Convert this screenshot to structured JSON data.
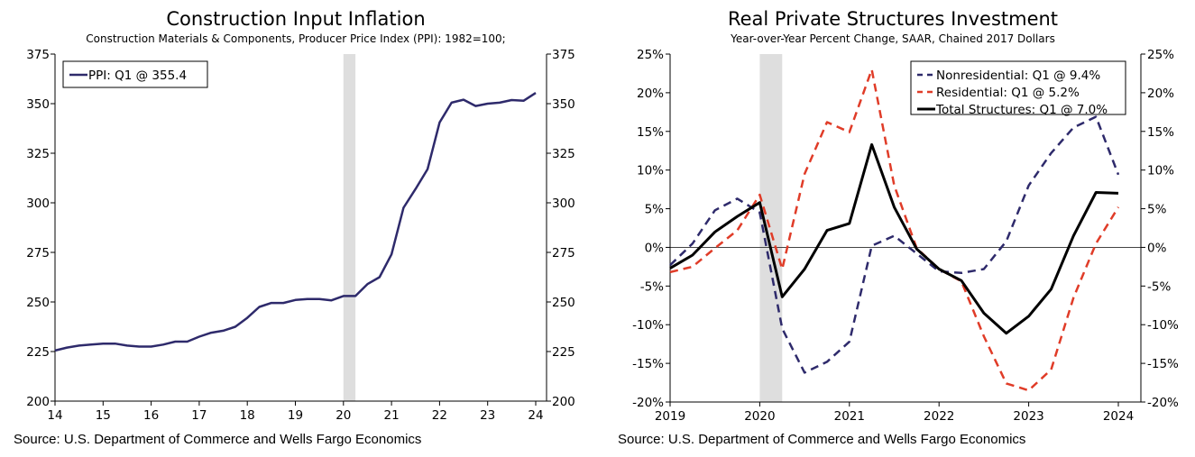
{
  "chart_data": [
    {
      "type": "line",
      "title": "Construction Input Inflation",
      "subtitle": "Construction Materials & Components, Producer Price Index (PPI): 1982=100;",
      "source": "Source: U.S. Department of Commerce and Wells Fargo Economics",
      "x_tick_labels": [
        "14",
        "15",
        "16",
        "17",
        "18",
        "19",
        "20",
        "21",
        "22",
        "23",
        "24"
      ],
      "y_tick_labels": [
        "200",
        "225",
        "250",
        "275",
        "300",
        "325",
        "350",
        "375"
      ],
      "ylim": [
        200,
        375
      ],
      "xlim": [
        2014,
        2024.1
      ],
      "x_start": 2014,
      "x_step": 0.25,
      "recession": [
        2020.0,
        2020.25
      ],
      "legend_placement": "top-left",
      "series": [
        {
          "name": "PPI: Q1 @ 355.4",
          "color": "#2e2a6b",
          "style": "solid",
          "values": [
            225.5,
            227,
            228,
            228.5,
            229,
            229,
            228,
            227.5,
            227.5,
            228.5,
            230,
            230,
            232.5,
            234.5,
            235.5,
            237.5,
            242,
            247.5,
            249.5,
            249.5,
            251,
            251.5,
            251.5,
            250.8,
            253,
            253,
            259,
            262.5,
            274,
            297.5,
            307,
            317,
            340.5,
            350.5,
            352,
            348.8,
            350,
            350.5,
            351.8,
            351.5,
            355.4
          ]
        }
      ]
    },
    {
      "type": "line",
      "title": "Real Private Structures Investment",
      "subtitle": "Year-over-Year Percent Change, SAAR, Chained 2017 Dollars",
      "source": "Source: U.S. Department of Commerce and Wells Fargo Economics",
      "x_tick_labels": [
        "2019",
        "2020",
        "2021",
        "2022",
        "2023",
        "2024"
      ],
      "y_tick_labels": [
        "-20%",
        "-15%",
        "-10%",
        "-5%",
        "0%",
        "5%",
        "10%",
        "15%",
        "20%",
        "25%"
      ],
      "ylim": [
        -20,
        25
      ],
      "xlim": [
        2019,
        2024.1
      ],
      "x_start": 2019,
      "x_step": 0.25,
      "recession": [
        2020.0,
        2020.25
      ],
      "legend_placement": "top-right",
      "series": [
        {
          "name": "Nonresidential: Q1 @ 9.4%",
          "color": "#2e2a6b",
          "style": "dashed",
          "values": [
            -2.3,
            0.5,
            4.8,
            6.3,
            4.5,
            -10.5,
            -16.2,
            -14.8,
            -12.2,
            0.2,
            1.5,
            -0.8,
            -3.1,
            -3.3,
            -2.8,
            0.8,
            8,
            12.2,
            15.5,
            16.9,
            9.4
          ]
        },
        {
          "name": "Residential: Q1 @ 5.2%",
          "color": "#e03c28",
          "style": "dashed",
          "values": [
            -3.2,
            -2.5,
            -0.1,
            2.2,
            6.8,
            -2.8,
            9.5,
            16.2,
            14.9,
            23,
            8,
            -0.1,
            -2.8,
            -4.4,
            -11.5,
            -17.6,
            -18.5,
            -15.8,
            -6.5,
            0.5,
            5.2
          ]
        },
        {
          "name": "Total Structures: Q1 @ 7.0%",
          "color": "#000000",
          "style": "solid",
          "values": [
            -2.7,
            -1,
            2,
            4,
            5.8,
            -6.4,
            -2.8,
            2.2,
            3.1,
            13.3,
            5.2,
            -0.2,
            -2.8,
            -4.3,
            -8.5,
            -11.1,
            -8.9,
            -5.4,
            1.5,
            7.1,
            7.0
          ]
        }
      ]
    }
  ]
}
